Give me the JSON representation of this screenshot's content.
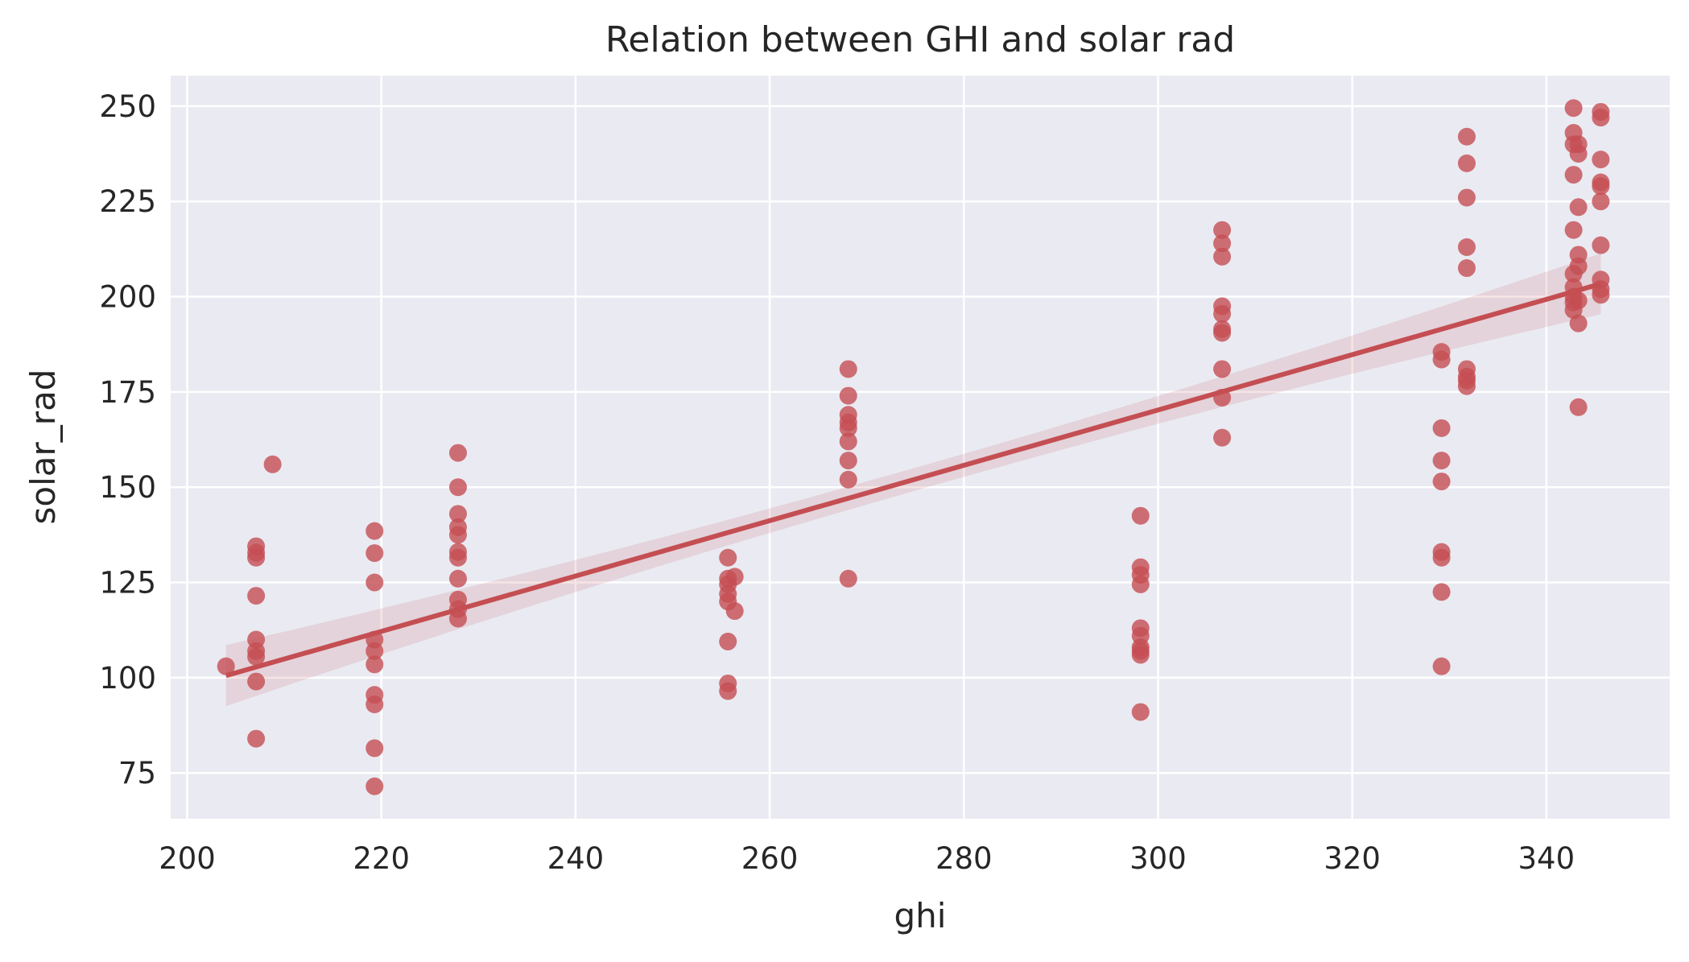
{
  "chart_data": {
    "type": "scatter",
    "title": "Relation between  GHI and solar rad",
    "xlabel": "ghi",
    "ylabel": "solar_rad",
    "xlim": [
      198.3,
      352.7
    ],
    "ylim": [
      63,
      258
    ],
    "xticks": [
      200,
      220,
      240,
      260,
      280,
      300,
      320,
      340
    ],
    "yticks": [
      75,
      100,
      125,
      150,
      175,
      200,
      225,
      250
    ],
    "xtick_labels": [
      "200",
      "220",
      "240",
      "260",
      "280",
      "300",
      "320",
      "340"
    ],
    "ytick_labels": [
      "75",
      "100",
      "125",
      "150",
      "175",
      "200",
      "225",
      "250"
    ],
    "grid": true,
    "background": "#eaeaf2",
    "grid_color": "#ffffff",
    "point_color": "#c44e52",
    "regression": {
      "slope": 0.7262,
      "intercept": -47.6,
      "x_range": [
        204,
        345.6
      ],
      "ci_halfwidth_ends": 8,
      "ci_halfwidth_center": 3
    },
    "points": [
      [
        204,
        103
      ],
      [
        207.1,
        134.5
      ],
      [
        207.1,
        132.8
      ],
      [
        207.1,
        131.5
      ],
      [
        207.1,
        121.5
      ],
      [
        207.1,
        110
      ],
      [
        207.1,
        107
      ],
      [
        207.1,
        105.5
      ],
      [
        207.1,
        99
      ],
      [
        207.1,
        84
      ],
      [
        208.8,
        156
      ],
      [
        219.3,
        138.5
      ],
      [
        219.3,
        132.7
      ],
      [
        219.3,
        125
      ],
      [
        219.3,
        110
      ],
      [
        219.3,
        107
      ],
      [
        219.3,
        103.5
      ],
      [
        219.3,
        95.5
      ],
      [
        219.3,
        93
      ],
      [
        219.3,
        81.5
      ],
      [
        219.3,
        71.5
      ],
      [
        227.9,
        159
      ],
      [
        227.9,
        150
      ],
      [
        227.9,
        143
      ],
      [
        227.9,
        139.5
      ],
      [
        227.9,
        137.5
      ],
      [
        227.9,
        133
      ],
      [
        227.9,
        131.5
      ],
      [
        227.9,
        126
      ],
      [
        227.9,
        120.5
      ],
      [
        227.9,
        118
      ],
      [
        227.9,
        115.5
      ],
      [
        255.7,
        131.5
      ],
      [
        255.7,
        126
      ],
      [
        255.7,
        124.5
      ],
      [
        255.7,
        122
      ],
      [
        255.7,
        120
      ],
      [
        255.7,
        109.5
      ],
      [
        255.7,
        98.5
      ],
      [
        255.7,
        96.5
      ],
      [
        256.4,
        126.5
      ],
      [
        256.4,
        117.5
      ],
      [
        268.1,
        181
      ],
      [
        268.1,
        174
      ],
      [
        268.1,
        169
      ],
      [
        268.1,
        167
      ],
      [
        268.1,
        165.5
      ],
      [
        268.1,
        162
      ],
      [
        268.1,
        157
      ],
      [
        268.1,
        152
      ],
      [
        268.1,
        126
      ],
      [
        298.2,
        142.5
      ],
      [
        298.2,
        129
      ],
      [
        298.2,
        127
      ],
      [
        298.2,
        124.5
      ],
      [
        298.2,
        113
      ],
      [
        298.2,
        111
      ],
      [
        298.2,
        108
      ],
      [
        298.2,
        107
      ],
      [
        298.2,
        106
      ],
      [
        298.2,
        91
      ],
      [
        306.6,
        217.5
      ],
      [
        306.6,
        214
      ],
      [
        306.6,
        210.5
      ],
      [
        306.6,
        197.5
      ],
      [
        306.6,
        195.5
      ],
      [
        306.6,
        191.5
      ],
      [
        306.6,
        190.5
      ],
      [
        306.6,
        181
      ],
      [
        306.6,
        173.5
      ],
      [
        306.6,
        163
      ],
      [
        329.2,
        185.5
      ],
      [
        329.2,
        183.5
      ],
      [
        329.2,
        165.5
      ],
      [
        329.2,
        157
      ],
      [
        329.2,
        151.5
      ],
      [
        329.2,
        133
      ],
      [
        329.2,
        131.5
      ],
      [
        329.2,
        122.5
      ],
      [
        329.2,
        103
      ],
      [
        331.8,
        242
      ],
      [
        331.8,
        235
      ],
      [
        331.8,
        226
      ],
      [
        331.8,
        213
      ],
      [
        331.8,
        207.5
      ],
      [
        331.8,
        181
      ],
      [
        331.8,
        179
      ],
      [
        331.8,
        178
      ],
      [
        331.8,
        176.5
      ],
      [
        342.8,
        249.5
      ],
      [
        342.8,
        243
      ],
      [
        342.8,
        240
      ],
      [
        342.8,
        232
      ],
      [
        342.8,
        217.5
      ],
      [
        342.8,
        206
      ],
      [
        342.8,
        202.5
      ],
      [
        342.8,
        200
      ],
      [
        342.8,
        198.5
      ],
      [
        342.8,
        196.5
      ],
      [
        343.3,
        240
      ],
      [
        343.3,
        237.5
      ],
      [
        343.3,
        223.5
      ],
      [
        343.3,
        211
      ],
      [
        343.3,
        208
      ],
      [
        343.3,
        199
      ],
      [
        343.3,
        193
      ],
      [
        343.3,
        171
      ],
      [
        345.6,
        248.5
      ],
      [
        345.6,
        247
      ],
      [
        345.6,
        236
      ],
      [
        345.6,
        230
      ],
      [
        345.6,
        229
      ],
      [
        345.6,
        225
      ],
      [
        345.6,
        213.5
      ],
      [
        345.6,
        204.5
      ],
      [
        345.6,
        202
      ],
      [
        345.6,
        200.5
      ]
    ]
  }
}
